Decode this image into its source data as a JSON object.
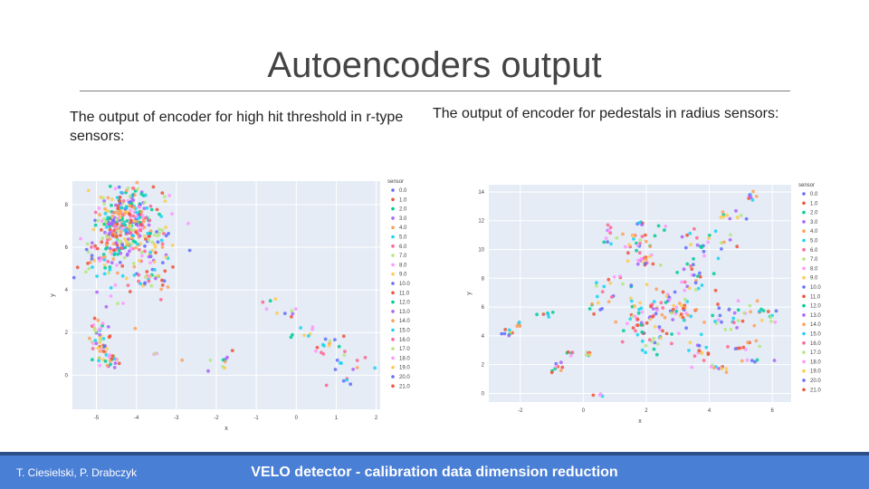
{
  "slide": {
    "title": "Autoencoders output",
    "left_caption": "The output of encoder for high hit threshold in r-type sensors:",
    "right_caption": "The output of encoder for pedestals in radius sensors:",
    "footer_authors": "T. Ciesielski, P. Drabczyk",
    "footer_title": "VELO detector - calibration data dimension reduction"
  },
  "colors": {
    "plot_bg": "#e5ecf6",
    "grid": "#ffffff",
    "palette": [
      "#636efa",
      "#ef553b",
      "#00cc96",
      "#ab63fa",
      "#ffa15a",
      "#19d3f3",
      "#ff6692",
      "#b6e880",
      "#ff97ff",
      "#fecb52"
    ]
  },
  "chart_data": [
    {
      "type": "scatter",
      "xlabel": "x",
      "ylabel": "y",
      "xlim": [
        -5.6,
        2.1
      ],
      "ylim": [
        -1.6,
        9.1
      ],
      "xticks": [
        "-5",
        "-4",
        "-3",
        "-2",
        "-1",
        "0",
        "1",
        "2"
      ],
      "xtick_values": [
        -5,
        -4,
        -3,
        -2,
        -1,
        0,
        1,
        2
      ],
      "yticks": [
        "0",
        "2",
        "4",
        "6",
        "8"
      ],
      "ytick_values": [
        0,
        2,
        4,
        6,
        8
      ],
      "legend_title": "sensor",
      "legend_position": "right",
      "legend_labels": [
        "0.0",
        "1.0",
        "2.0",
        "3.0",
        "4.0",
        "5.0",
        "6.0",
        "7.0",
        "8.0",
        "9.0",
        "10.0",
        "11.0",
        "12.0",
        "13.0",
        "14.0",
        "15.0",
        "16.0",
        "17.0",
        "18.0",
        "19.0",
        "20.0",
        "21.0"
      ],
      "clusters": [
        {
          "cx": -4.3,
          "cy": 7.4,
          "sx": 0.35,
          "sy": 0.7,
          "n": 260
        },
        {
          "cx": -4.2,
          "cy": 6.2,
          "sx": 0.5,
          "sy": 0.6,
          "n": 90
        },
        {
          "cx": -4.8,
          "cy": 5.2,
          "sx": 0.3,
          "sy": 0.7,
          "n": 40
        },
        {
          "cx": -3.8,
          "cy": 4.6,
          "sx": 0.4,
          "sy": 0.6,
          "n": 50
        },
        {
          "cx": -3.4,
          "cy": 6.5,
          "sx": 0.2,
          "sy": 0.8,
          "n": 20
        },
        {
          "cx": -4.9,
          "cy": 1.5,
          "sx": 0.15,
          "sy": 0.7,
          "n": 45
        },
        {
          "cx": -4.6,
          "cy": 0.7,
          "sx": 0.15,
          "sy": 0.2,
          "n": 20
        },
        {
          "cx": -3.5,
          "cy": 1.0,
          "sx": 0.1,
          "sy": 0.1,
          "n": 3
        },
        {
          "cx": -2.0,
          "cy": 0.6,
          "sx": 0.3,
          "sy": 0.3,
          "n": 6
        },
        {
          "cx": -1.5,
          "cy": 0.8,
          "sx": 0.2,
          "sy": 0.2,
          "n": 4
        },
        {
          "cx": -0.8,
          "cy": 3.4,
          "sx": 0.15,
          "sy": 0.4,
          "n": 4
        },
        {
          "cx": -0.2,
          "cy": 2.9,
          "sx": 0.15,
          "sy": 0.1,
          "n": 6
        },
        {
          "cx": 0.3,
          "cy": 1.9,
          "sx": 0.2,
          "sy": 0.2,
          "n": 8
        },
        {
          "cx": 0.6,
          "cy": 1.2,
          "sx": 0.1,
          "sy": 0.2,
          "n": 5
        },
        {
          "cx": 1.0,
          "cy": 1.4,
          "sx": 0.2,
          "sy": 0.2,
          "n": 8
        },
        {
          "cx": 1.2,
          "cy": 0.3,
          "sx": 0.15,
          "sy": 0.5,
          "n": 12
        },
        {
          "cx": 1.6,
          "cy": 0.6,
          "sx": 0.2,
          "sy": 0.6,
          "n": 4
        }
      ]
    },
    {
      "type": "scatter",
      "xlabel": "x",
      "ylabel": "y",
      "xlim": [
        -3.0,
        6.6
      ],
      "ylim": [
        -0.6,
        14.5
      ],
      "xticks": [
        "-2",
        "0",
        "2",
        "4",
        "6"
      ],
      "xtick_values": [
        -2,
        0,
        2,
        4,
        6
      ],
      "yticks": [
        "0",
        "2",
        "4",
        "6",
        "8",
        "10",
        "12",
        "14"
      ],
      "ytick_values": [
        0,
        2,
        4,
        6,
        8,
        10,
        12,
        14
      ],
      "legend_title": "sensor",
      "legend_position": "right",
      "legend_labels": [
        "0.0",
        "1.0",
        "2.0",
        "3.0",
        "4.0",
        "5.0",
        "6.0",
        "7.0",
        "8.0",
        "9.0",
        "10.0",
        "11.0",
        "12.0",
        "13.0",
        "14.0",
        "15.0",
        "16.0",
        "17.0",
        "18.0",
        "19.0",
        "20.0",
        "21.0"
      ],
      "clusters": [
        {
          "cx": -2.4,
          "cy": 4.3,
          "sx": 0.1,
          "sy": 0.25,
          "n": 8
        },
        {
          "cx": -2.0,
          "cy": 4.8,
          "sx": 0.1,
          "sy": 0.2,
          "n": 6
        },
        {
          "cx": -1.2,
          "cy": 5.6,
          "sx": 0.1,
          "sy": 0.3,
          "n": 6
        },
        {
          "cx": -0.9,
          "cy": 1.7,
          "sx": 0.1,
          "sy": 0.3,
          "n": 10
        },
        {
          "cx": -0.5,
          "cy": 2.8,
          "sx": 0.1,
          "sy": 0.1,
          "n": 5
        },
        {
          "cx": 0.1,
          "cy": 2.7,
          "sx": 0.1,
          "sy": 0.1,
          "n": 6
        },
        {
          "cx": 0.5,
          "cy": -0.1,
          "sx": 0.1,
          "sy": 0.05,
          "n": 4
        },
        {
          "cx": 0.4,
          "cy": 6.0,
          "sx": 0.15,
          "sy": 0.4,
          "n": 8
        },
        {
          "cx": 0.8,
          "cy": 11.0,
          "sx": 0.1,
          "sy": 0.4,
          "n": 8
        },
        {
          "cx": 1.0,
          "cy": 7.5,
          "sx": 0.3,
          "sy": 0.5,
          "n": 15
        },
        {
          "cx": 1.7,
          "cy": 10.4,
          "sx": 0.4,
          "sy": 0.7,
          "n": 30
        },
        {
          "cx": 1.8,
          "cy": 11.8,
          "sx": 0.1,
          "sy": 0.1,
          "n": 5
        },
        {
          "cx": 2.6,
          "cy": 11.5,
          "sx": 0.1,
          "sy": 0.1,
          "n": 3
        },
        {
          "cx": 2.0,
          "cy": 9.2,
          "sx": 0.2,
          "sy": 0.3,
          "n": 12
        },
        {
          "cx": 2.3,
          "cy": 6.2,
          "sx": 0.6,
          "sy": 0.6,
          "n": 40
        },
        {
          "cx": 2.0,
          "cy": 4.8,
          "sx": 0.5,
          "sy": 0.4,
          "n": 30
        },
        {
          "cx": 2.2,
          "cy": 3.5,
          "sx": 0.4,
          "sy": 0.4,
          "n": 20
        },
        {
          "cx": 3.4,
          "cy": 8.0,
          "sx": 0.4,
          "sy": 0.6,
          "n": 25
        },
        {
          "cx": 3.0,
          "cy": 5.8,
          "sx": 0.4,
          "sy": 0.6,
          "n": 20
        },
        {
          "cx": 3.7,
          "cy": 3.1,
          "sx": 0.2,
          "sy": 0.4,
          "n": 15
        },
        {
          "cx": 4.2,
          "cy": 1.8,
          "sx": 0.2,
          "sy": 0.1,
          "n": 10
        },
        {
          "cx": 4.0,
          "cy": 10.4,
          "sx": 0.4,
          "sy": 0.6,
          "n": 25
        },
        {
          "cx": 4.7,
          "cy": 12.5,
          "sx": 0.2,
          "sy": 0.3,
          "n": 10
        },
        {
          "cx": 5.3,
          "cy": 13.7,
          "sx": 0.1,
          "sy": 0.2,
          "n": 8
        },
        {
          "cx": 4.5,
          "cy": 5.3,
          "sx": 0.5,
          "sy": 0.6,
          "n": 30
        },
        {
          "cx": 5.2,
          "cy": 3.2,
          "sx": 0.3,
          "sy": 0.3,
          "n": 10
        },
        {
          "cx": 5.4,
          "cy": 2.3,
          "sx": 0.2,
          "sy": 0.1,
          "n": 6
        },
        {
          "cx": 5.8,
          "cy": 5.6,
          "sx": 0.2,
          "sy": 0.4,
          "n": 12
        }
      ]
    }
  ]
}
